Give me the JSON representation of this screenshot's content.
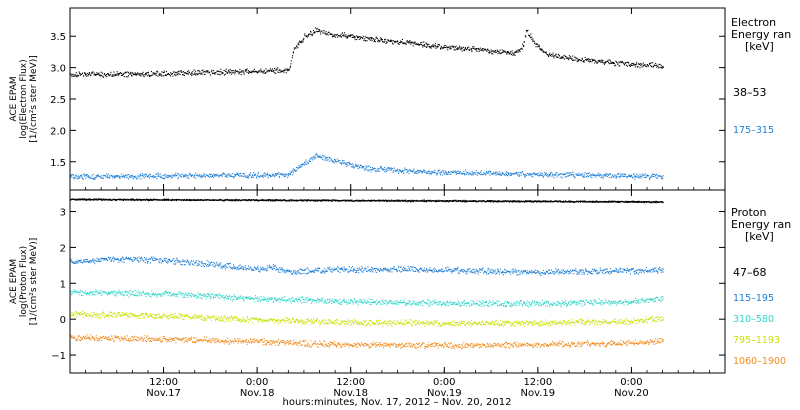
{
  "figure": {
    "xlabel": "hours:minutes, Nov. 17, 2012 – Nov. 20, 2012",
    "x_ticks": [
      {
        "time": "2012-11-17T12:00",
        "line1": "12:00",
        "line2": "Nov.17"
      },
      {
        "time": "2012-11-18T00:00",
        "line1": "0:00",
        "line2": "Nov.18"
      },
      {
        "time": "2012-11-18T12:00",
        "line1": "12:00",
        "line2": "Nov.18"
      },
      {
        "time": "2012-11-19T00:00",
        "line1": "0:00",
        "line2": "Nov.19"
      },
      {
        "time": "2012-11-19T12:00",
        "line1": "12:00",
        "line2": "Nov.19"
      },
      {
        "time": "2012-11-20T00:00",
        "line1": "0:00",
        "line2": "Nov.20"
      }
    ],
    "x_range": [
      "2012-11-17T00:00",
      "2012-11-20T12:00"
    ]
  },
  "chart_data": [
    {
      "type": "scatter",
      "panel": "electron",
      "ylabel_lines": [
        "ACE EPAM",
        "log(Electron Flux)",
        "[1/(cm²s ster MeV)]"
      ],
      "ylim": [
        1.05,
        3.95
      ],
      "yticks": [
        1.5,
        2.0,
        2.5,
        3.0,
        3.5
      ],
      "ytick_labels": [
        "1.5",
        "2.0",
        "2.5",
        "3.0",
        "3.5"
      ],
      "legend_title_lines": [
        "Electron",
        "Energy ran",
        "[keV]"
      ],
      "series": [
        {
          "name": "38–53",
          "color": "#000000",
          "x": [
            "2012-11-17T00:00",
            "2012-11-17T06:00",
            "2012-11-17T12:00",
            "2012-11-17T18:00",
            "2012-11-18T00:00",
            "2012-11-18T04:00",
            "2012-11-18T04:40",
            "2012-11-18T06:00",
            "2012-11-18T07:30",
            "2012-11-18T09:00",
            "2012-11-18T12:00",
            "2012-11-18T18:00",
            "2012-11-19T00:00",
            "2012-11-19T06:00",
            "2012-11-19T09:00",
            "2012-11-19T10:00",
            "2012-11-19T10:30",
            "2012-11-19T11:30",
            "2012-11-19T13:00",
            "2012-11-19T18:00",
            "2012-11-20T00:00",
            "2012-11-20T04:00"
          ],
          "y": [
            2.9,
            2.9,
            2.91,
            2.93,
            2.95,
            2.97,
            3.3,
            3.5,
            3.6,
            3.55,
            3.5,
            3.42,
            3.34,
            3.27,
            3.23,
            3.35,
            3.6,
            3.4,
            3.22,
            3.12,
            3.06,
            3.03
          ]
        },
        {
          "name": "175–315",
          "color": "#1f7fd6",
          "x": [
            "2012-11-17T00:00",
            "2012-11-17T12:00",
            "2012-11-18T00:00",
            "2012-11-18T04:00",
            "2012-11-18T05:30",
            "2012-11-18T07:30",
            "2012-11-18T10:00",
            "2012-11-18T14:00",
            "2012-11-18T20:00",
            "2012-11-19T06:00",
            "2012-11-19T18:00",
            "2012-11-20T04:00"
          ],
          "y": [
            1.27,
            1.28,
            1.29,
            1.3,
            1.45,
            1.6,
            1.52,
            1.4,
            1.35,
            1.32,
            1.29,
            1.27
          ]
        }
      ]
    },
    {
      "type": "scatter",
      "panel": "proton",
      "ylabel_lines": [
        "ACE EPAM",
        "log(Proton Flux)",
        "[1/(cm²s ster MeV)]"
      ],
      "ylim": [
        -1.5,
        3.6
      ],
      "yticks": [
        -1,
        0,
        1,
        2,
        3
      ],
      "ytick_labels": [
        "−1",
        "0",
        "1",
        "2",
        "3"
      ],
      "legend_title_lines": [
        "Proton",
        "Energy ran",
        "[keV]"
      ],
      "series": [
        {
          "name": "47–68",
          "color": "#000000",
          "x": [
            "2012-11-17T00:00",
            "2012-11-18T12:00",
            "2012-11-20T04:00"
          ],
          "y": [
            3.35,
            3.32,
            3.28
          ]
        },
        {
          "name": "115–195",
          "color": "#1f7fd6",
          "x": [
            "2012-11-17T00:00",
            "2012-11-17T06:00",
            "2012-11-17T12:00",
            "2012-11-17T18:00",
            "2012-11-18T00:00",
            "2012-11-18T02:00",
            "2012-11-18T04:00",
            "2012-11-18T08:00",
            "2012-11-18T18:00",
            "2012-11-19T12:00",
            "2012-11-20T04:00"
          ],
          "y": [
            1.6,
            1.7,
            1.65,
            1.55,
            1.4,
            1.45,
            1.32,
            1.38,
            1.4,
            1.32,
            1.38
          ]
        },
        {
          "name": "310–580",
          "color": "#2fd6c8",
          "x": [
            "2012-11-17T00:00",
            "2012-11-17T12:00",
            "2012-11-18T00:00",
            "2012-11-18T12:00",
            "2012-11-19T00:00",
            "2012-11-19T12:00",
            "2012-11-20T00:00",
            "2012-11-20T04:00"
          ],
          "y": [
            0.75,
            0.72,
            0.58,
            0.5,
            0.46,
            0.44,
            0.5,
            0.6
          ]
        },
        {
          "name": "795–1193",
          "color": "#c8e000",
          "x": [
            "2012-11-17T00:00",
            "2012-11-17T12:00",
            "2012-11-18T00:00",
            "2012-11-18T12:00",
            "2012-11-19T00:00",
            "2012-11-19T12:00",
            "2012-11-20T00:00",
            "2012-11-20T04:00"
          ],
          "y": [
            0.15,
            0.1,
            0.0,
            -0.08,
            -0.1,
            -0.1,
            -0.05,
            0.05
          ]
        },
        {
          "name": "1060–1900",
          "color": "#f08c1e",
          "x": [
            "2012-11-17T00:00",
            "2012-11-17T12:00",
            "2012-11-18T00:00",
            "2012-11-18T12:00",
            "2012-11-19T00:00",
            "2012-11-19T12:00",
            "2012-11-20T00:00",
            "2012-11-20T04:00"
          ],
          "y": [
            -0.5,
            -0.55,
            -0.62,
            -0.7,
            -0.72,
            -0.7,
            -0.65,
            -0.6
          ]
        }
      ]
    }
  ]
}
